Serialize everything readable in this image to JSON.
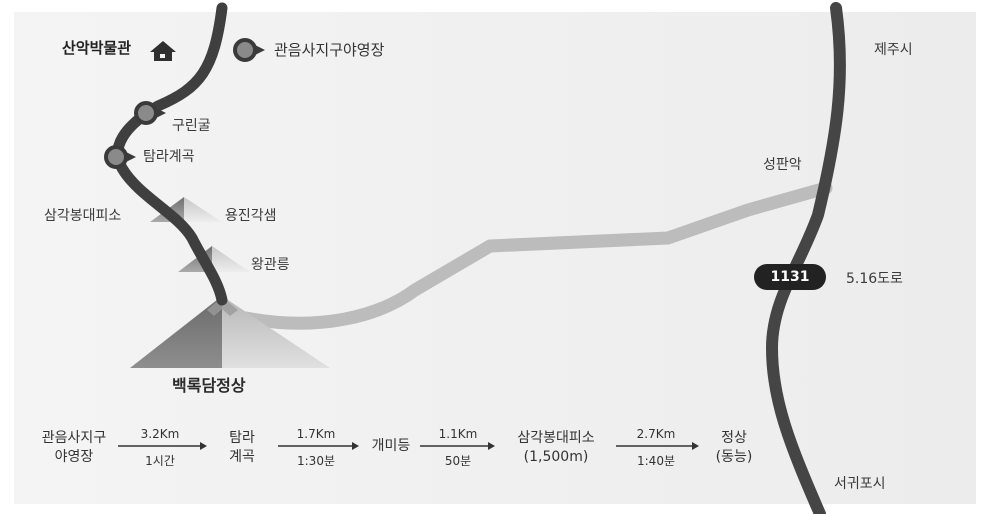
{
  "places": {
    "museum": "산악박물관",
    "campground": "관음사지구야영장",
    "gurin_cave": "구린굴",
    "tamra_valley": "탐라계곡",
    "samgak_shelter": "삼각봉대피소",
    "yongjin": "용진각샘",
    "wanggwan": "왕관릉",
    "summit": "백록담정상",
    "jeju_city": "제주시",
    "seongpanak": "성판악",
    "road_516": "5.16도로",
    "seogwipo": "서귀포시"
  },
  "road_badge": "1131",
  "route": {
    "stops": [
      {
        "line1": "관음사지구",
        "line2": "야영장"
      },
      {
        "line1": "탐라",
        "line2": "계곡"
      },
      {
        "line1": "개미등",
        "line2": ""
      },
      {
        "line1": "삼각봉대피소",
        "line2": "(1,500m)"
      },
      {
        "line1": "정상",
        "line2": "(동능)"
      }
    ],
    "segments": [
      {
        "distance": "3.2Km",
        "time": "1시간"
      },
      {
        "distance": "1.7Km",
        "time": "1:30분"
      },
      {
        "distance": "1.1Km",
        "time": "50분"
      },
      {
        "distance": "2.7Km",
        "time": "1:40분"
      }
    ]
  },
  "colors": {
    "trail": "#3f3f3f",
    "road": "#bdbdbd",
    "highway": "#454545",
    "marker": "#8a8a8a",
    "badge": "#222222"
  },
  "icons": [
    "house-icon",
    "map-pin-icon",
    "mountain-icon",
    "arrow-right-icon"
  ]
}
